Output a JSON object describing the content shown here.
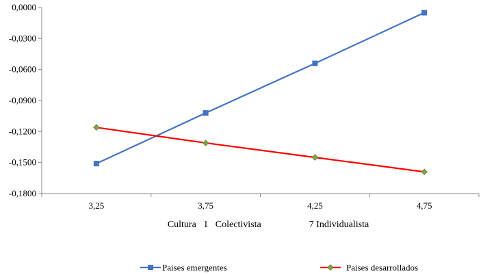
{
  "chart_data": {
    "type": "line",
    "title": "",
    "x": [
      "3,25",
      "3,75",
      "4,25",
      "4,75"
    ],
    "xlabel": "Cultura   1   Colectivista                    7 Individualista",
    "ylabel": "",
    "ylim": [
      -0.18,
      0.0
    ],
    "yticks": [
      0.0,
      -0.03,
      -0.06,
      -0.09,
      -0.12,
      -0.15,
      -0.18
    ],
    "ytick_labels": [
      "0,0000",
      "-0,0300",
      "-0,0600",
      "-0,0900",
      "-0,1200",
      "-0,1500",
      "-0,1800"
    ],
    "grid": false,
    "legend_position": "bottom",
    "series": [
      {
        "name": "Paises emergentes",
        "values": [
          -0.151,
          -0.102,
          -0.054,
          -0.005
        ],
        "color": "#4472C4",
        "marker": "square"
      },
      {
        "name": "Paises desarrollados",
        "values": [
          -0.116,
          -0.131,
          -0.145,
          -0.159
        ],
        "color": "#FF0000",
        "marker": "diamond",
        "marker_color": "#70AD47"
      }
    ]
  }
}
